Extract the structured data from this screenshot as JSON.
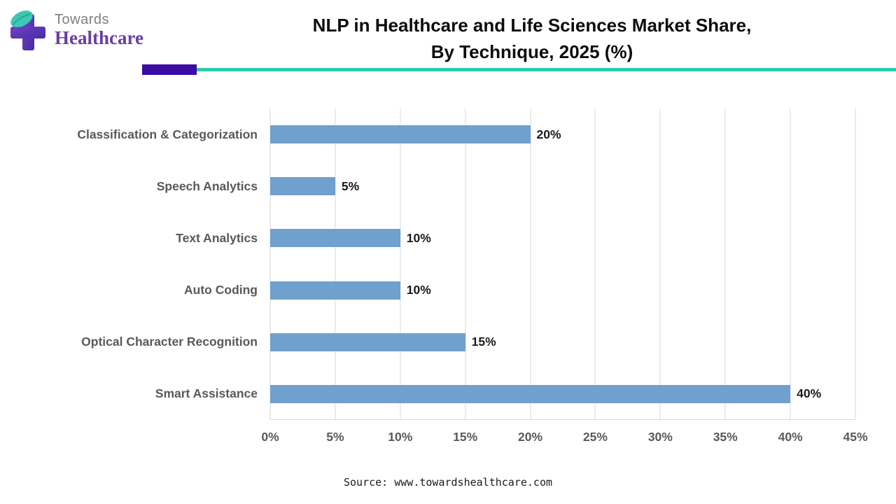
{
  "header": {
    "logo": {
      "line1": "Towards",
      "line2": "Healthcare"
    },
    "title_line1": "NLP in Healthcare and Life Sciences Market Share,",
    "title_line2": "By Technique, 2025 (%)"
  },
  "footer": {
    "source": "Source: www.towardshealthcare.com"
  },
  "colors": {
    "bar-color": "#6fa0ce",
    "divider-purple": "#3a0ca3",
    "divider-teal": "#2fc8b0",
    "logo-purple": "#6b3fa0"
  },
  "chart_data": {
    "type": "bar",
    "orientation": "horizontal",
    "title": "NLP in Healthcare and Life Sciences Market Share, By Technique, 2025 (%)",
    "categories": [
      "Classification & Categorization",
      "Speech Analytics",
      "Text Analytics",
      "Auto Coding",
      "Optical Character Recognition",
      "Smart Assistance"
    ],
    "values": [
      20,
      5,
      10,
      10,
      15,
      40
    ],
    "value_labels": [
      "20%",
      "5%",
      "10%",
      "10%",
      "15%",
      "40%"
    ],
    "x_ticks": [
      "0%",
      "5%",
      "10%",
      "15%",
      "20%",
      "25%",
      "30%",
      "35%",
      "40%",
      "45%"
    ],
    "xlim": [
      0,
      45
    ],
    "grid": true,
    "legend": "none"
  }
}
